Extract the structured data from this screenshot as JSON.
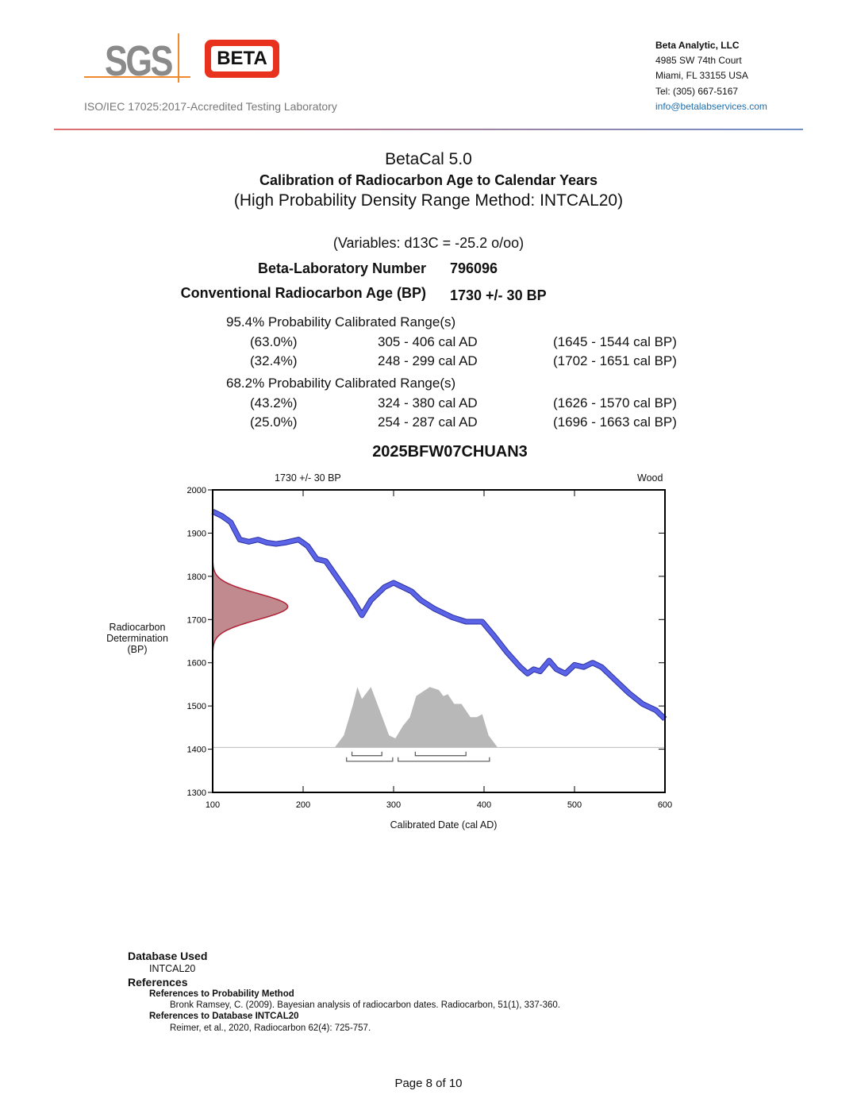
{
  "header": {
    "logo_sgs": "SGS",
    "logo_beta": "BETA",
    "accreditation": "ISO/IEC 17025:2017-Accredited Testing Laboratory",
    "company": "Beta Analytic, LLC",
    "street": "4985 SW 74th Court",
    "city": "Miami, FL 33155 USA",
    "tel": "Tel: (305) 667-5167",
    "email": "info@betalabservices.com"
  },
  "title": {
    "app": "BetaCal 5.0",
    "main": "Calibration of Radiocarbon Age to Calendar Years",
    "method": "(High Probability Density Range Method: INTCAL20)"
  },
  "variables": "(Variables: d13C = -25.2 o/oo)",
  "lab_number": {
    "label": "Beta-Laboratory Number",
    "value": "796096"
  },
  "age": {
    "label": "Conventional Radiocarbon Age (BP)",
    "value": "1730 +/- 30 BP"
  },
  "ranges": [
    {
      "heading": "95.4% Probability Calibrated Range(s)",
      "rows": [
        {
          "pct": "(63.0%)",
          "ad": "305 - 406 cal AD",
          "bp": "(1645 - 1544 cal BP)"
        },
        {
          "pct": "(32.4%)",
          "ad": "248 - 299 cal AD",
          "bp": "(1702 - 1651 cal BP)"
        }
      ]
    },
    {
      "heading": "68.2% Probability Calibrated Range(s)",
      "rows": [
        {
          "pct": "(43.2%)",
          "ad": "324 - 380 cal AD",
          "bp": "(1626 - 1570 cal BP)"
        },
        {
          "pct": "(25.0%)",
          "ad": "254 - 287 cal AD",
          "bp": "(1696 - 1663 cal BP)"
        }
      ]
    }
  ],
  "chart_data": {
    "type": "line",
    "title": "2025BFW07CHUAN3",
    "annotation_left": "1730 +/- 30 BP",
    "annotation_right": "Wood",
    "xlabel": "Calibrated Date (cal AD)",
    "ylabel": "Radiocarbon Determination (BP)",
    "xlim": [
      100,
      600
    ],
    "ylim": [
      1300,
      2000
    ],
    "xticks": [
      100,
      200,
      300,
      400,
      500,
      600
    ],
    "yticks": [
      1300,
      1400,
      1500,
      1600,
      1700,
      1800,
      1900,
      2000
    ],
    "calibration_curve": {
      "color": "#5b63e6",
      "x": [
        100,
        110,
        120,
        130,
        140,
        150,
        160,
        170,
        180,
        195,
        205,
        215,
        225,
        240,
        255,
        265,
        275,
        290,
        300,
        310,
        320,
        330,
        345,
        355,
        365,
        380,
        398,
        410,
        425,
        440,
        448,
        455,
        462,
        472,
        480,
        490,
        500,
        510,
        520,
        530,
        545,
        560,
        575,
        590,
        600
      ],
      "y": [
        1950,
        1940,
        1925,
        1885,
        1880,
        1885,
        1878,
        1875,
        1878,
        1885,
        1870,
        1840,
        1835,
        1790,
        1745,
        1710,
        1745,
        1775,
        1785,
        1775,
        1765,
        1745,
        1725,
        1715,
        1705,
        1695,
        1695,
        1665,
        1625,
        1590,
        1575,
        1585,
        1580,
        1605,
        1585,
        1575,
        1595,
        1590,
        1600,
        1590,
        1560,
        1530,
        1505,
        1490,
        1470
      ]
    },
    "radiocarbon_age": {
      "mean": 1730,
      "sigma": 30,
      "color": "#b02035"
    },
    "calibrated_probability": {
      "color": "#b8b8b8",
      "x": [
        235,
        245,
        255,
        260,
        265,
        275,
        285,
        295,
        302,
        310,
        318,
        325,
        340,
        350,
        355,
        360,
        367,
        375,
        385,
        392,
        398,
        405,
        415
      ],
      "p": [
        0,
        0.2,
        0.7,
        1.0,
        0.8,
        1.0,
        0.6,
        0.2,
        0.15,
        0.35,
        0.5,
        0.85,
        1.0,
        0.95,
        0.85,
        0.88,
        0.72,
        0.72,
        0.5,
        0.5,
        0.55,
        0.2,
        0
      ]
    },
    "hpd_68": [
      [
        254,
        287
      ],
      [
        324,
        380
      ]
    ],
    "hpd_95": [
      [
        248,
        299
      ],
      [
        305,
        406
      ]
    ]
  },
  "footer": {
    "db_heading": "Database Used",
    "db": "INTCAL20",
    "refs_heading": "References",
    "ref1_heading": "References to Probability Method",
    "ref1": "Bronk Ramsey, C. (2009). Bayesian analysis of radiocarbon dates. Radiocarbon, 51(1), 337-360.",
    "ref2_heading": "References to Database INTCAL20",
    "ref2": "Reimer, et al., 2020, Radiocarbon 62(4): 725-757.",
    "page": "Page 8 of 10"
  }
}
